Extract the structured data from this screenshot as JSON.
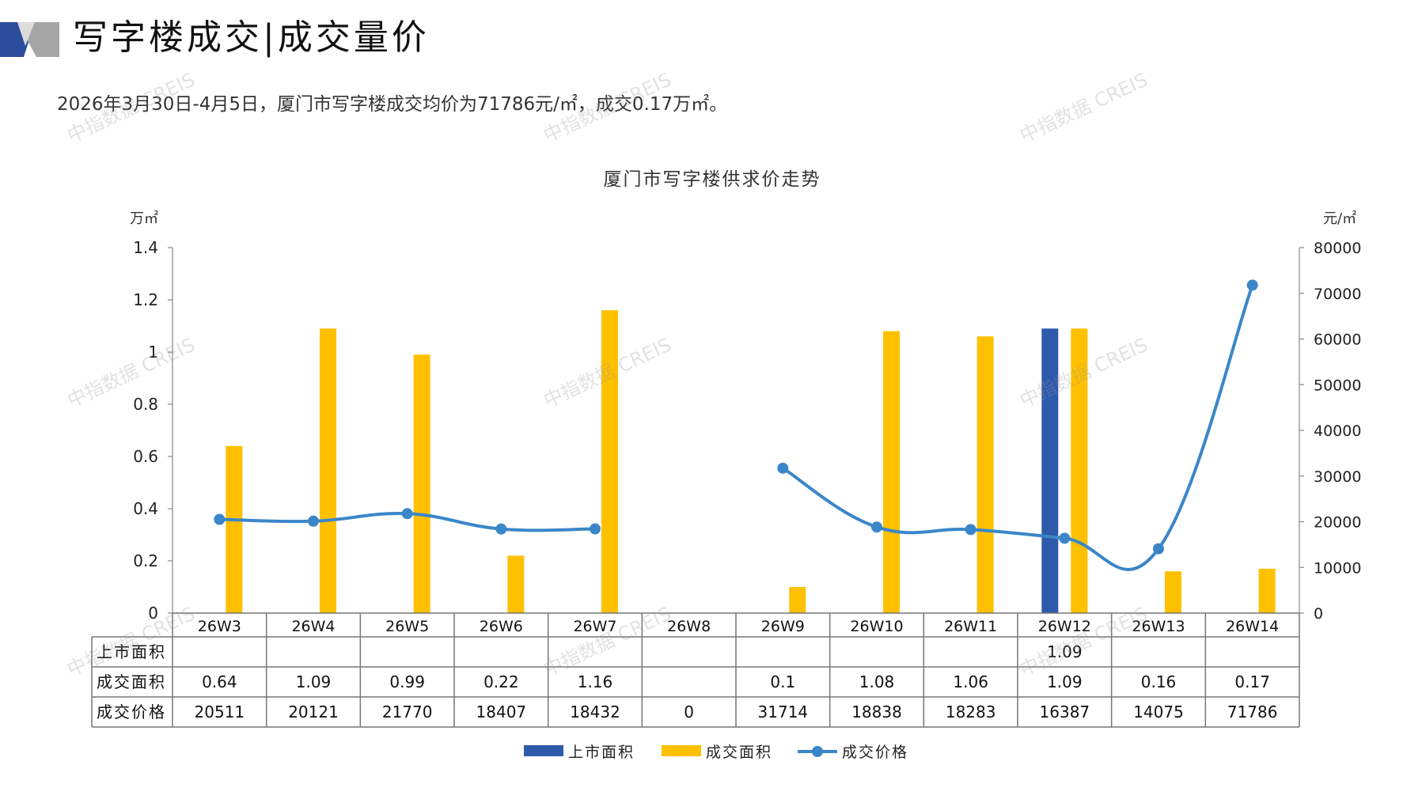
{
  "header": {
    "title": "写字楼成交|成交量价",
    "summary": "2026年3月30日-4月5日，厦门市写字楼成交均价为71786元/㎡，成交0.17万㎡。"
  },
  "watermark": {
    "text": "中指数据 CREIS"
  },
  "colors": {
    "supply": "#2E5AAC",
    "deal": "#FFC000",
    "price": "#3B86C9",
    "logo_blue": "#2B4C9B",
    "logo_gray": "#A6A6A6"
  },
  "chart_data": {
    "type": "bar",
    "title": "厦门市写字楼供求价走势",
    "y_left_unit": "万㎡",
    "y_right_unit": "元/㎡",
    "ylim_left": [
      0,
      1.4
    ],
    "yticks_left": [
      "0",
      "0.2",
      "0.4",
      "0.6",
      "0.8",
      "1",
      "1.2",
      "1.4"
    ],
    "ylim_right": [
      0,
      80000
    ],
    "yticks_right": [
      "0",
      "10000",
      "20000",
      "30000",
      "40000",
      "50000",
      "60000",
      "70000",
      "80000"
    ],
    "categories": [
      "26W3",
      "26W4",
      "26W5",
      "26W6",
      "26W7",
      "26W8",
      "26W9",
      "26W10",
      "26W11",
      "26W12",
      "26W13",
      "26W14"
    ],
    "series": [
      {
        "name": "上市面积",
        "type": "bar",
        "values": [
          null,
          null,
          null,
          null,
          null,
          null,
          null,
          null,
          null,
          1.09,
          null,
          null
        ],
        "labels": [
          "",
          "",
          "",
          "",
          "",
          "",
          "",
          "",
          "",
          "1.09",
          "",
          ""
        ]
      },
      {
        "name": "成交面积",
        "type": "bar",
        "values": [
          0.64,
          1.09,
          0.99,
          0.22,
          1.16,
          null,
          0.1,
          1.08,
          1.06,
          1.09,
          0.16,
          0.17
        ],
        "labels": [
          "0.64",
          "1.09",
          "0.99",
          "0.22",
          "1.16",
          "",
          "0.1",
          "1.08",
          "1.06",
          "1.09",
          "0.16",
          "0.17"
        ]
      },
      {
        "name": "成交价格",
        "type": "line",
        "axis": "right",
        "values": [
          20511,
          20121,
          21770,
          18407,
          18432,
          0,
          31714,
          18838,
          18283,
          16387,
          14075,
          71786
        ],
        "labels": [
          "20511",
          "20121",
          "21770",
          "18407",
          "18432",
          "0",
          "31714",
          "18838",
          "18283",
          "16387",
          "14075",
          "71786"
        ]
      }
    ],
    "legend_position": "bottom",
    "data_table": true
  }
}
